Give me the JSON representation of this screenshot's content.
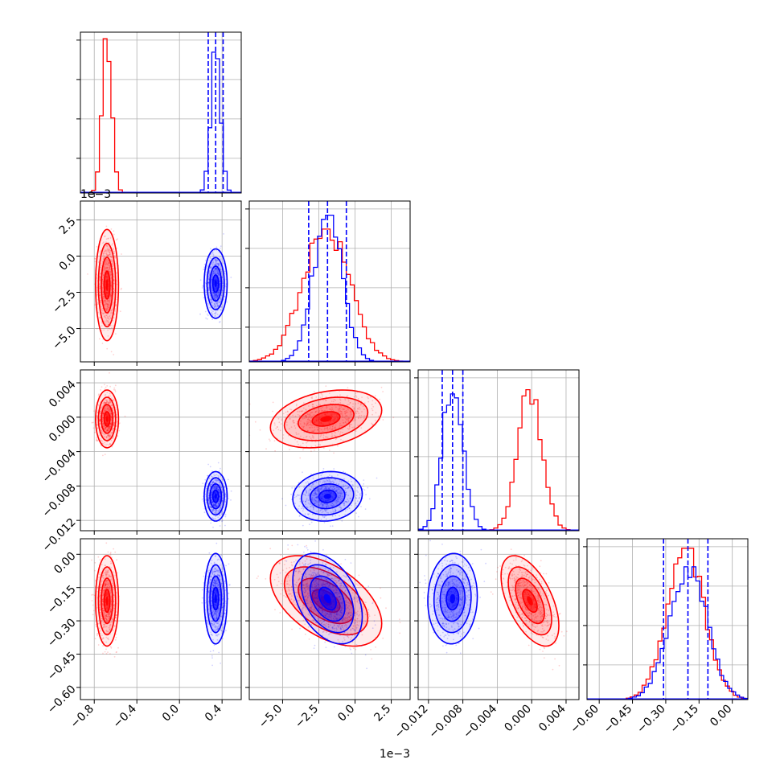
{
  "chart_data": {
    "type": "corner",
    "colors": {
      "red": "#ff0000",
      "blue": "#0000ff",
      "grid": "#b0b0b0",
      "axis": "#000000"
    },
    "grid": true,
    "parameters": [
      {
        "range": [
          -0.93,
          0.58
        ],
        "ticks": [
          -0.8,
          -0.4,
          0.0,
          0.4
        ],
        "tick_labels": [
          "−0.8",
          "−0.4",
          "0.0",
          "0.4"
        ]
      },
      {
        "range": [
          -7.3,
          3.8
        ],
        "ticks": [
          -5.0,
          -2.5,
          0.0,
          2.5
        ],
        "tick_labels": [
          "−5.0",
          "−2.5",
          "0.0",
          "2.5"
        ],
        "offset_label": "1e−3"
      },
      {
        "range": [
          -0.0132,
          0.0055
        ],
        "ticks": [
          -0.012,
          -0.008,
          -0.004,
          0.0,
          0.004
        ],
        "tick_labels": [
          "−0.012",
          "−0.008",
          "−0.004",
          "0.000",
          "0.004"
        ]
      },
      {
        "range": [
          -0.655,
          0.07
        ],
        "ticks": [
          -0.6,
          -0.45,
          -0.3,
          -0.15,
          0.0
        ],
        "tick_labels": [
          "−0.60",
          "−0.45",
          "−0.30",
          "−0.15",
          "0.00"
        ]
      }
    ],
    "y_offset_label": "1e−3",
    "red": {
      "mean": [
        -0.68,
        -2.0,
        -0.0002,
        -0.21
      ],
      "sd": [
        0.045,
        1.6,
        0.0014,
        0.085
      ],
      "corr": [
        [
          1,
          0,
          0,
          0
        ],
        [
          0,
          1,
          0.3,
          -0.5
        ],
        [
          0,
          0.3,
          1,
          -0.55
        ],
        [
          0,
          -0.5,
          -0.55,
          1
        ]
      ],
      "hist_peak": [
        1.0,
        0.86,
        0.92,
        0.98
      ]
    },
    "blue": {
      "mean": [
        0.34,
        -1.9,
        -0.0092,
        -0.2
      ],
      "sd": [
        0.045,
        1.0,
        0.0012,
        0.085
      ],
      "corr": [
        [
          1,
          0,
          0,
          0
        ],
        [
          0,
          1,
          0.1,
          -0.4
        ],
        [
          0,
          0.1,
          1,
          0.05
        ],
        [
          0,
          -0.4,
          0.05,
          1
        ]
      ],
      "hist_peak": [
        0.95,
        0.95,
        0.94,
        0.86
      ],
      "quantile_lines": [
        [
          0.27,
          0.34,
          0.41
        ],
        [
          -3.2,
          -1.9,
          -0.6
        ],
        [
          -0.0104,
          -0.0092,
          -0.008
        ],
        [
          -0.31,
          -0.2,
          -0.11
        ]
      ]
    }
  }
}
